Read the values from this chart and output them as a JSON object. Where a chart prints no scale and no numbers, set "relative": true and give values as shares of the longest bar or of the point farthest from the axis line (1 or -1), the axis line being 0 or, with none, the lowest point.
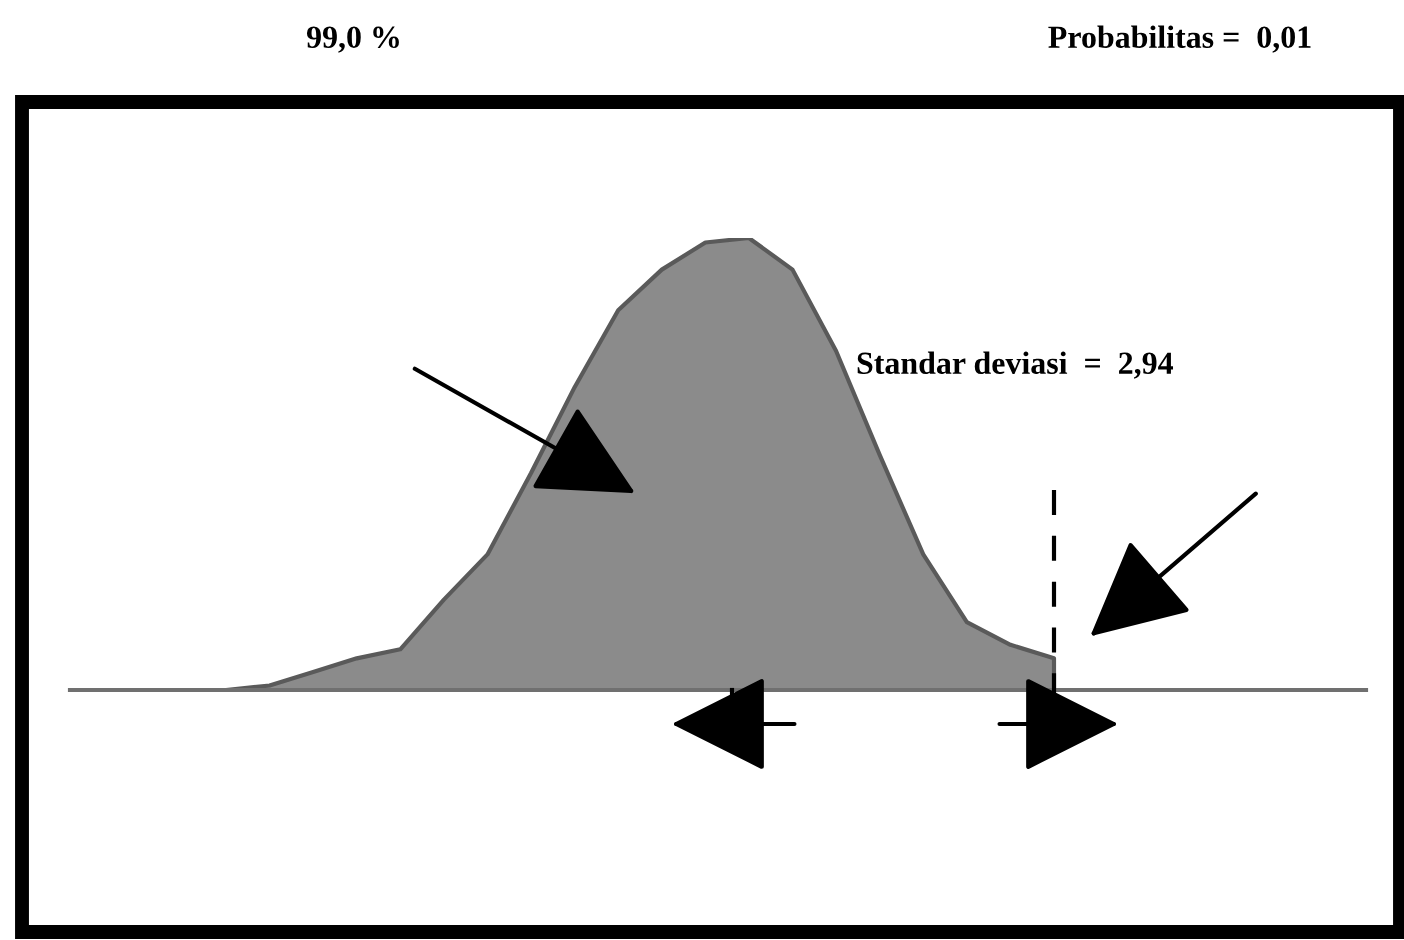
{
  "chart_data": {
    "type": "area",
    "relative": true,
    "annotations": [
      "99,0 %",
      "Probabilitas =  0,01",
      "Standar deviasi  =  2,94"
    ],
    "categories": [
      null,
      null,
      null,
      null,
      null,
      null,
      null,
      null,
      null,
      null,
      null,
      null,
      null,
      null,
      null,
      null,
      null,
      null,
      null,
      null
    ],
    "series": [
      {
        "color": "#5a5a5a",
        "values": [
          0,
          0.01,
          0.04,
          0.07,
          0.09,
          0.2,
          0.3,
          0.48,
          0.67,
          0.84,
          0.93,
          0.99,
          1.0,
          0.93,
          0.75,
          0.52,
          0.3,
          0.15,
          0.1,
          0.07
        ]
      }
    ]
  }
}
